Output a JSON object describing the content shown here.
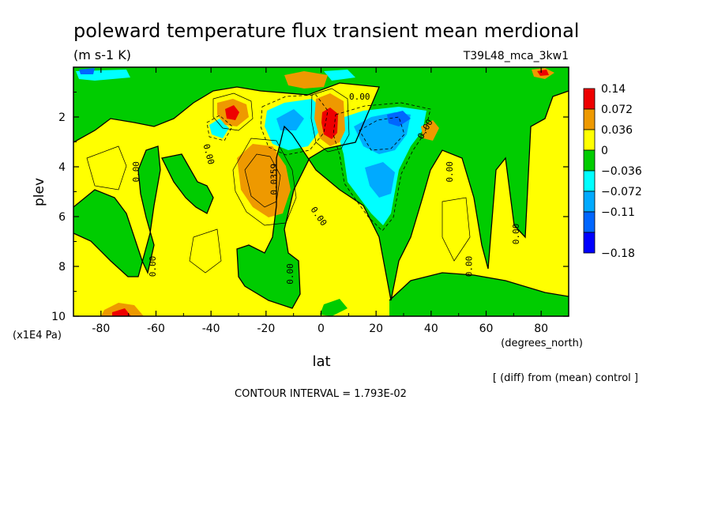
{
  "chart_data": {
    "type": "heatmap",
    "title": "poleward temperature flux transient mean merdional",
    "units": "(m s-1 K)",
    "run_label": "T39L48_mca_3kw1",
    "xlabel": "lat",
    "xunits": "(degrees_north)",
    "ylabel": "plev",
    "yunits": "(x1E4 Pa)",
    "x_ticks": [
      "-80",
      "-60",
      "-40",
      "-20",
      "0",
      "20",
      "40",
      "60",
      "80"
    ],
    "y_ticks": [
      "2",
      "4",
      "6",
      "8",
      "10"
    ],
    "xlim": [
      -90,
      90
    ],
    "ylim": [
      0,
      10
    ],
    "y_inverted": true,
    "legend": {
      "placement": "right",
      "levels": [
        "0.14",
        "0.072",
        "0.036",
        "0",
        "−0.036",
        "−0.072",
        "−0.11",
        "−0.18"
      ],
      "colors": [
        "#ee0000",
        "#ee9900",
        "#ffff00",
        "#00cc00",
        "#00ffff",
        "#00aaff",
        "#0066ff",
        "#0000ff"
      ]
    },
    "contour_labels": [
      {
        "text": "0.00",
        "lon": -67,
        "plev": 4.2,
        "rot": -90
      },
      {
        "text": "0.00",
        "lon": -61,
        "plev": 8.0,
        "rot": -90
      },
      {
        "text": "0.00",
        "lon": -41,
        "plev": 3.5,
        "rot": 75
      },
      {
        "text": "0.0359",
        "lon": -17,
        "plev": 4.5,
        "rot": -90
      },
      {
        "text": "0.00",
        "lon": -11,
        "plev": 8.3,
        "rot": -90
      },
      {
        "text": "0.00",
        "lon": -1,
        "plev": 6.0,
        "rot": 55
      },
      {
        "text": "0.00",
        "lon": 14,
        "plev": 1.2,
        "rot": 0
      },
      {
        "text": "0.00",
        "lon": 38,
        "plev": 2.5,
        "rot": -60
      },
      {
        "text": "0.00",
        "lon": 47,
        "plev": 4.2,
        "rot": -90
      },
      {
        "text": "0.00",
        "lon": 54,
        "plev": 8.0,
        "rot": -90
      },
      {
        "text": "0.00",
        "lon": 71,
        "plev": 6.7,
        "rot": -90
      }
    ],
    "annotation": "[ (diff) from (mean) control ]",
    "contour_interval": "CONTOUR INTERVAL = 1.793E-02"
  }
}
